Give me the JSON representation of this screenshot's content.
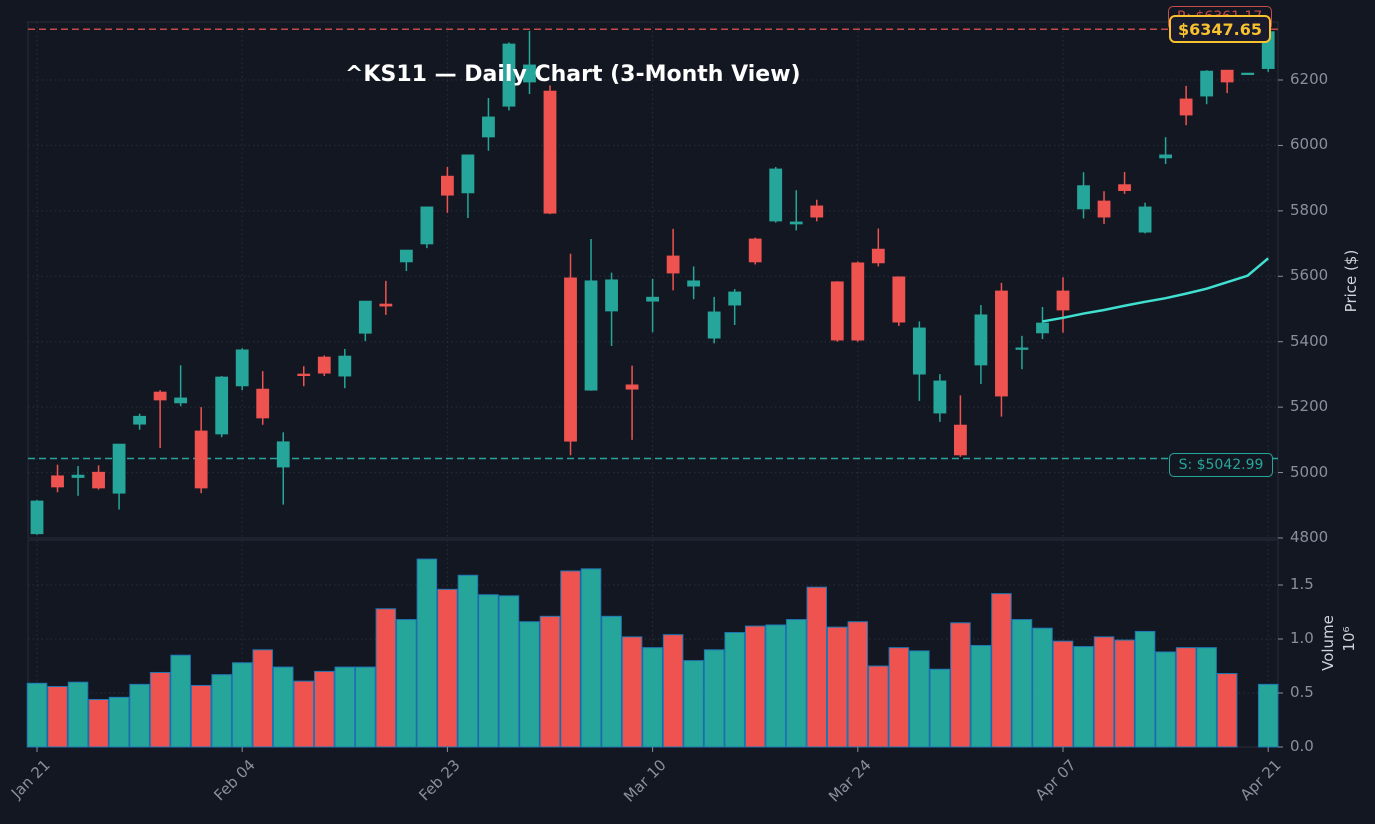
{
  "header": {
    "title": "^KS11 — Daily Chart (3-Month View)",
    "current_price_label": "$6347.65",
    "resistance_label": "R: $6361.17",
    "support_label": "S: $5042.99"
  },
  "axes": {
    "price_label": "Price ($)",
    "volume_label": "Volume",
    "volume_exponent": "10⁶",
    "price_ticks": [
      "4800",
      "5000",
      "5200",
      "5400",
      "5600",
      "5800",
      "6000",
      "6200"
    ],
    "volume_ticks": [
      "0.0",
      "0.5",
      "1.0",
      "1.5"
    ],
    "x_ticks": [
      "Jan 21",
      "Feb 04",
      "Feb 23",
      "Mar 10",
      "Mar 24",
      "Apr 07",
      "Apr 21"
    ]
  },
  "colors": {
    "background": "#131722",
    "up": "#26a69a",
    "down": "#ef5350",
    "sma": "#40e0d0",
    "resistance": "#c64a4a",
    "support": "#26a69a",
    "price_badge": "#f7c12f",
    "volume_edge": "#1f77b4"
  },
  "chart_data": {
    "type": "candlestick",
    "title": "^KS11 — Daily Chart (3-Month View)",
    "xlabel": "",
    "ylabel": "Price ($)",
    "ylim": [
      4800,
      6360
    ],
    "volume_ylabel": "Volume (10^6)",
    "volume_ylim": [
      0,
      1.8
    ],
    "x_tick_labels": [
      "Jan 21",
      "Feb 04",
      "Feb 23",
      "Mar 10",
      "Mar 24",
      "Apr 07",
      "Apr 21"
    ],
    "x_tick_indices": [
      0,
      10,
      20,
      30,
      40,
      50,
      60
    ],
    "resistance": 6361.17,
    "support": 5042.99,
    "last_price": 6347.65,
    "grid": true,
    "ohlc": [
      [
        4813,
        4916,
        4810,
        4913
      ],
      [
        4990,
        5024,
        4940,
        4956
      ],
      [
        4985,
        5020,
        4929,
        4992
      ],
      [
        5001,
        5022,
        4948,
        4953
      ],
      [
        4937,
        5087,
        4887,
        5087
      ],
      [
        5148,
        5180,
        5131,
        5172
      ],
      [
        5246,
        5252,
        5075,
        5222
      ],
      [
        5213,
        5328,
        5203,
        5228
      ],
      [
        5127,
        5200,
        4937,
        4953
      ],
      [
        5118,
        5295,
        5108,
        5292
      ],
      [
        5265,
        5380,
        5252,
        5375
      ],
      [
        5255,
        5310,
        5146,
        5167
      ],
      [
        5017,
        5123,
        4902,
        5094
      ],
      [
        5301,
        5325,
        5264,
        5298
      ],
      [
        5353,
        5358,
        5295,
        5304
      ],
      [
        5295,
        5378,
        5258,
        5356
      ],
      [
        5426,
        5524,
        5402,
        5524
      ],
      [
        5515,
        5586,
        5482,
        5509
      ],
      [
        5644,
        5680,
        5616,
        5680
      ],
      [
        5699,
        5812,
        5686,
        5812
      ],
      [
        5906,
        5934,
        5794,
        5848
      ],
      [
        5855,
        5971,
        5778,
        5971
      ],
      [
        6026,
        6145,
        5984,
        6087
      ],
      [
        6120,
        6315,
        6107,
        6310
      ],
      [
        6194,
        6350,
        6157,
        6246
      ],
      [
        6166,
        6183,
        5790,
        5793
      ],
      [
        5595,
        5669,
        5053,
        5096
      ],
      [
        5252,
        5714,
        5250,
        5586
      ],
      [
        5494,
        5611,
        5387,
        5589
      ],
      [
        5268,
        5327,
        5100,
        5255
      ],
      [
        5524,
        5592,
        5429,
        5536
      ],
      [
        5662,
        5745,
        5557,
        5610
      ],
      [
        5570,
        5630,
        5530,
        5586
      ],
      [
        5411,
        5537,
        5395,
        5491
      ],
      [
        5512,
        5561,
        5451,
        5552
      ],
      [
        5714,
        5718,
        5636,
        5644
      ],
      [
        5769,
        5934,
        5764,
        5928
      ],
      [
        5760,
        5863,
        5740,
        5766
      ],
      [
        5815,
        5834,
        5768,
        5781
      ],
      [
        5583,
        5585,
        5400,
        5405
      ],
      [
        5641,
        5645,
        5400,
        5405
      ],
      [
        5683,
        5746,
        5630,
        5641
      ],
      [
        5598,
        5600,
        5448,
        5460
      ],
      [
        5301,
        5462,
        5219,
        5442
      ],
      [
        5182,
        5301,
        5155,
        5280
      ],
      [
        5145,
        5236,
        5048,
        5054
      ],
      [
        5329,
        5512,
        5271,
        5482
      ],
      [
        5555,
        5580,
        5171,
        5234
      ],
      [
        5379,
        5418,
        5316,
        5381
      ],
      [
        5427,
        5506,
        5408,
        5457
      ],
      [
        5555,
        5597,
        5428,
        5497
      ],
      [
        5806,
        5918,
        5777,
        5877
      ],
      [
        5830,
        5860,
        5760,
        5781
      ],
      [
        5880,
        5919,
        5852,
        5862
      ],
      [
        5735,
        5825,
        5731,
        5812
      ],
      [
        5962,
        6025,
        5943,
        5971
      ],
      [
        6142,
        6182,
        6062,
        6093
      ],
      [
        6151,
        6230,
        6126,
        6227
      ],
      [
        6230,
        6230,
        6160,
        6194
      ],
      [
        6221,
        6221,
        6221,
        6221
      ],
      [
        6235,
        6350,
        6225,
        6347.65
      ]
    ],
    "volume": [
      0.59,
      0.56,
      0.6,
      0.44,
      0.46,
      0.58,
      0.69,
      0.85,
      0.57,
      0.67,
      0.78,
      0.9,
      0.74,
      0.61,
      0.7,
      0.74,
      0.74,
      1.28,
      1.18,
      1.74,
      1.46,
      1.59,
      1.41,
      1.4,
      1.16,
      1.21,
      1.63,
      1.65,
      1.21,
      1.02,
      0.92,
      1.04,
      0.8,
      0.9,
      1.06,
      1.12,
      1.13,
      1.18,
      1.48,
      1.11,
      1.16,
      0.75,
      0.92,
      0.89,
      0.72,
      1.15,
      0.94,
      1.42,
      1.18,
      1.1,
      0.98,
      0.93,
      1.02,
      0.99,
      1.07,
      0.88,
      0.92,
      0.92,
      0.68,
      0,
      0.58
    ],
    "volume_up": [
      1,
      0,
      1,
      0,
      1,
      1,
      0,
      1,
      0,
      1,
      1,
      0,
      1,
      0,
      0,
      1,
      1,
      0,
      1,
      1,
      0,
      1,
      1,
      1,
      1,
      0,
      0,
      1,
      1,
      0,
      1,
      0,
      1,
      1,
      1,
      0,
      1,
      1,
      0,
      0,
      0,
      0,
      0,
      1,
      1,
      0,
      1,
      0,
      1,
      1,
      0,
      1,
      0,
      0,
      1,
      1,
      0,
      1,
      0,
      0,
      1
    ],
    "sma": {
      "name": "SMA",
      "start_index": 49,
      "values": [
        5462,
        5473,
        5486,
        5497,
        5510,
        5522,
        5533,
        5547,
        5562,
        5582,
        5602,
        5655
      ]
    }
  }
}
